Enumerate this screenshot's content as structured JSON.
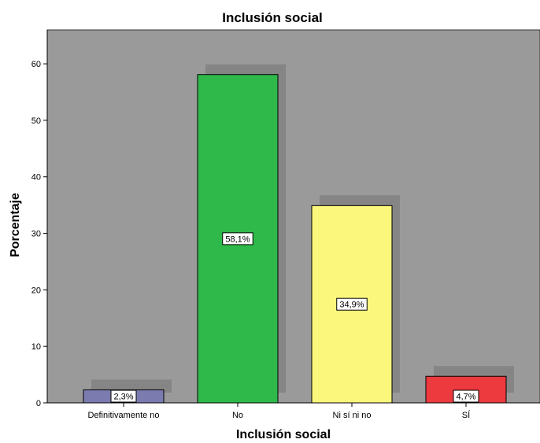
{
  "chart_data": {
    "type": "bar",
    "title": "Inclusión social",
    "xlabel": "Inclusión social",
    "ylabel": "Porcentaje",
    "categories": [
      "Definitivamente no",
      "No",
      "Ni sí ni no",
      "SÍ"
    ],
    "values": [
      2.3,
      58.1,
      34.9,
      4.7
    ],
    "data_labels": [
      "2,3%",
      "58,1%",
      "34,9%",
      "4,7%"
    ],
    "colors": [
      "#7b7bb0",
      "#2fb94b",
      "#fbf77c",
      "#ec3a3f"
    ],
    "yticks": [
      "0",
      "10",
      "20",
      "30",
      "40",
      "50",
      "60"
    ],
    "ylim": [
      0,
      66
    ],
    "grid": false,
    "legend": "none",
    "background": "#9a9a9a",
    "shadow_color": "#858585"
  }
}
